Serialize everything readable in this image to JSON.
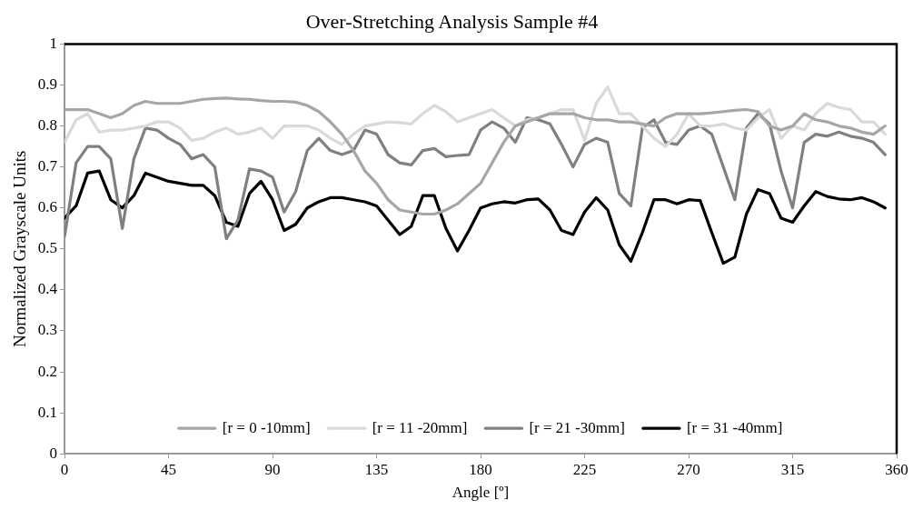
{
  "chart_data": {
    "type": "line",
    "title": "Over-Stretching Analysis Sample #4",
    "xlabel": "Angle [º]",
    "ylabel": "Normalized Grayscale Units",
    "x": [
      0,
      5,
      10,
      15,
      20,
      25,
      30,
      35,
      40,
      45,
      50,
      55,
      60,
      65,
      70,
      75,
      80,
      85,
      90,
      95,
      100,
      105,
      110,
      115,
      120,
      125,
      130,
      135,
      140,
      145,
      150,
      155,
      160,
      165,
      170,
      175,
      180,
      185,
      190,
      195,
      200,
      205,
      210,
      215,
      220,
      225,
      230,
      235,
      240,
      245,
      250,
      255,
      260,
      265,
      270,
      275,
      280,
      285,
      290,
      295,
      300,
      305,
      310,
      315,
      320,
      325,
      330,
      335,
      340,
      345,
      350,
      355
    ],
    "series": [
      {
        "name": "[r = 0 -10mm]",
        "color": "#a6a6a6",
        "values": [
          0.84,
          0.84,
          0.84,
          0.83,
          0.82,
          0.83,
          0.85,
          0.86,
          0.855,
          0.855,
          0.855,
          0.86,
          0.865,
          0.867,
          0.868,
          0.866,
          0.865,
          0.862,
          0.86,
          0.86,
          0.858,
          0.85,
          0.835,
          0.81,
          0.78,
          0.74,
          0.69,
          0.66,
          0.62,
          0.595,
          0.59,
          0.585,
          0.585,
          0.595,
          0.61,
          0.635,
          0.66,
          0.71,
          0.76,
          0.8,
          0.81,
          0.82,
          0.83,
          0.83,
          0.83,
          0.82,
          0.815,
          0.815,
          0.81,
          0.81,
          0.805,
          0.8,
          0.82,
          0.83,
          0.83,
          0.83,
          0.832,
          0.835,
          0.838,
          0.84,
          0.835,
          0.8,
          0.79,
          0.8,
          0.83,
          0.815,
          0.81,
          0.8,
          0.795,
          0.785,
          0.78,
          0.8
        ]
      },
      {
        "name": "[r = 11 -20mm]",
        "color": "#d9d9d9",
        "values": [
          0.76,
          0.815,
          0.83,
          0.785,
          0.79,
          0.79,
          0.795,
          0.8,
          0.81,
          0.81,
          0.795,
          0.765,
          0.77,
          0.785,
          0.795,
          0.78,
          0.785,
          0.795,
          0.77,
          0.8,
          0.8,
          0.8,
          0.79,
          0.77,
          0.755,
          0.78,
          0.8,
          0.805,
          0.81,
          0.808,
          0.805,
          0.83,
          0.85,
          0.835,
          0.81,
          0.82,
          0.83,
          0.84,
          0.82,
          0.8,
          0.815,
          0.82,
          0.83,
          0.84,
          0.84,
          0.765,
          0.855,
          0.895,
          0.83,
          0.83,
          0.8,
          0.77,
          0.75,
          0.78,
          0.83,
          0.8,
          0.8,
          0.805,
          0.795,
          0.79,
          0.82,
          0.84,
          0.77,
          0.8,
          0.79,
          0.83,
          0.855,
          0.845,
          0.84,
          0.81,
          0.81,
          0.78
        ]
      },
      {
        "name": "[r = 21 -30mm]",
        "color": "#808080",
        "values": [
          0.53,
          0.71,
          0.75,
          0.75,
          0.72,
          0.55,
          0.72,
          0.795,
          0.79,
          0.77,
          0.755,
          0.72,
          0.73,
          0.7,
          0.525,
          0.57,
          0.695,
          0.69,
          0.675,
          0.59,
          0.64,
          0.74,
          0.77,
          0.74,
          0.73,
          0.74,
          0.79,
          0.78,
          0.73,
          0.71,
          0.705,
          0.74,
          0.745,
          0.725,
          0.728,
          0.73,
          0.79,
          0.81,
          0.795,
          0.76,
          0.82,
          0.815,
          0.805,
          0.755,
          0.7,
          0.755,
          0.77,
          0.76,
          0.635,
          0.605,
          0.795,
          0.815,
          0.76,
          0.755,
          0.79,
          0.8,
          0.78,
          0.7,
          0.62,
          0.795,
          0.83,
          0.805,
          0.69,
          0.6,
          0.76,
          0.78,
          0.775,
          0.785,
          0.775,
          0.77,
          0.76,
          0.73
        ]
      },
      {
        "name": "[r = 31 -40mm]",
        "color": "#000000",
        "values": [
          0.575,
          0.605,
          0.685,
          0.69,
          0.62,
          0.6,
          0.63,
          0.685,
          0.675,
          0.665,
          0.66,
          0.655,
          0.655,
          0.63,
          0.565,
          0.555,
          0.635,
          0.665,
          0.62,
          0.545,
          0.56,
          0.6,
          0.615,
          0.625,
          0.625,
          0.62,
          0.615,
          0.605,
          0.57,
          0.535,
          0.555,
          0.63,
          0.63,
          0.55,
          0.495,
          0.545,
          0.6,
          0.61,
          0.615,
          0.612,
          0.62,
          0.622,
          0.595,
          0.545,
          0.535,
          0.59,
          0.625,
          0.595,
          0.51,
          0.47,
          0.54,
          0.62,
          0.62,
          0.61,
          0.62,
          0.618,
          0.54,
          0.465,
          0.48,
          0.585,
          0.645,
          0.635,
          0.575,
          0.565,
          0.605,
          0.64,
          0.628,
          0.622,
          0.62,
          0.625,
          0.615,
          0.6
        ]
      }
    ],
    "xlim": [
      0,
      360
    ],
    "xticks": [
      0,
      45,
      90,
      135,
      180,
      225,
      270,
      315,
      360
    ],
    "ylim": [
      0,
      1
    ],
    "yticks": [
      0,
      0.1,
      0.2,
      0.3,
      0.4,
      0.5,
      0.6,
      0.7,
      0.8,
      0.9,
      1
    ],
    "grid": false,
    "legend": "bottom",
    "marker": "none",
    "line_style": "solid"
  }
}
